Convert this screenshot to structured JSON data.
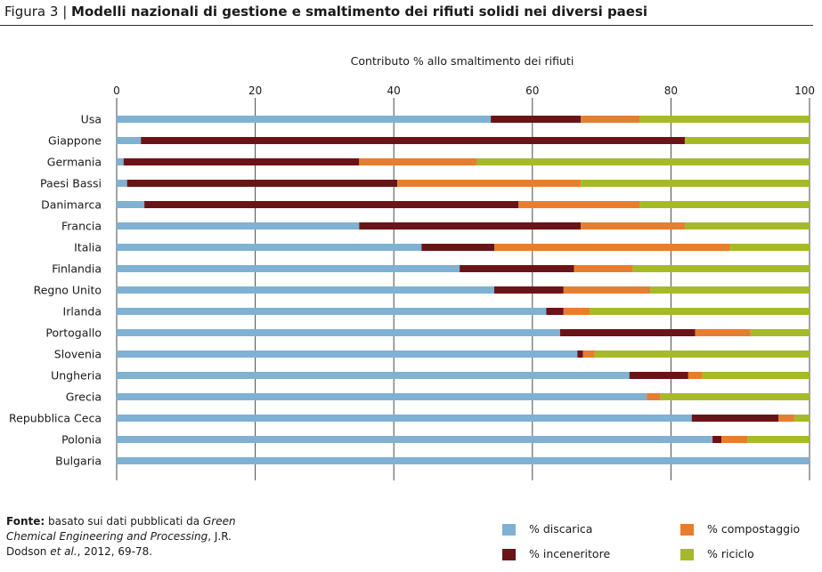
{
  "header": {
    "figure_label": "Figura 3",
    "separator": "|",
    "title": "Modelli nazionali di gestione e smaltimento dei rifiuti solidi nei diversi paesi"
  },
  "chart_data": {
    "type": "bar",
    "orientation": "horizontal",
    "stacked": true,
    "xlabel": "Contributo % allo smaltimento dei rifiuti",
    "xlim": [
      0,
      100
    ],
    "xticks": [
      "0",
      "20",
      "40",
      "60",
      "80",
      "100"
    ],
    "grid": "vertical",
    "legend_position": "bottom-right",
    "categories": [
      "Usa",
      "Giappone",
      "Germania",
      "Paesi Bassi",
      "Danimarca",
      "Francia",
      "Italia",
      "Finlandia",
      "Regno Unito",
      "Irlanda",
      "Portogallo",
      "Slovenia",
      "Ungheria",
      "Grecia",
      "Repubblica Ceca",
      "Polonia",
      "Bulgaria"
    ],
    "series": [
      {
        "name": "% discarica",
        "color": "#7fb1d3",
        "values": [
          54.0,
          3.5,
          1.0,
          1.5,
          4.0,
          35.0,
          44.0,
          49.5,
          54.5,
          62.0,
          64.0,
          66.5,
          74.0,
          76.5,
          83.0,
          86.0,
          100.0
        ]
      },
      {
        "name": "% inceneritore",
        "color": "#6b1417",
        "values": [
          13.0,
          78.5,
          34.0,
          39.0,
          54.0,
          32.0,
          10.5,
          16.5,
          10.0,
          2.5,
          19.5,
          0.8,
          8.5,
          0.0,
          12.5,
          1.3,
          0.0
        ]
      },
      {
        "name": "% compostaggio",
        "color": "#e67e30",
        "values": [
          8.5,
          0.0,
          17.0,
          26.5,
          17.5,
          15.0,
          34.0,
          8.5,
          12.5,
          3.8,
          8.0,
          1.7,
          2.0,
          2.0,
          2.3,
          3.8,
          0.0
        ]
      },
      {
        "name": "% riciclo",
        "color": "#a6ba29",
        "values": [
          24.5,
          18.0,
          48.0,
          33.0,
          24.5,
          18.0,
          11.5,
          25.5,
          23.0,
          31.7,
          8.5,
          31.0,
          15.5,
          21.5,
          2.2,
          8.9,
          0.0
        ]
      }
    ]
  },
  "source_note": {
    "label": "Fonte:",
    "text_1": " basato sui dati pubblicati da ",
    "italic_1": "Green Chemical Engineering and Processing",
    "text_2": ", J.R. Dodson ",
    "italic_2": "et al.",
    "text_3": ", 2012, 69-78."
  }
}
